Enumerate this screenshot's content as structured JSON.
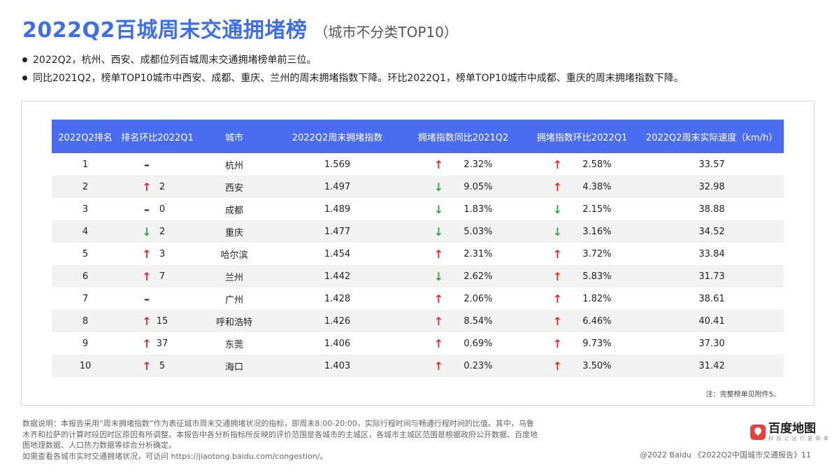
{
  "header": {
    "title": "2022Q2百城周末交通拥堵榜",
    "subtitle": "（城市不分类TOP10）"
  },
  "bullets": [
    "2022Q2，杭州、西安、成都位列百城周末交通拥堵榜单前三位。",
    "同比2021Q2，榜单TOP10城市中西安、成都、重庆、兰州的周末拥堵指数下降。环比2022Q1，榜单TOP10城市中成都、重庆的周末拥堵指数下降。"
  ],
  "table": {
    "columns": [
      "2022Q2排名",
      "排名环比2022Q1",
      "城市",
      "2022Q2周末拥堵指数",
      "拥堵指数同比2021Q2",
      "拥堵指数环比2022Q1",
      "2022Q2周末实际速度（km/h）"
    ],
    "rows": [
      {
        "rank": "1",
        "rank_change": {
          "dir": "flat",
          "value": ""
        },
        "city": "杭州",
        "index": "1.569",
        "yoy": {
          "dir": "up",
          "value": "2.32%"
        },
        "qoq": {
          "dir": "up",
          "value": "2.58%"
        },
        "speed": "33.57"
      },
      {
        "rank": "2",
        "rank_change": {
          "dir": "up",
          "value": "2"
        },
        "city": "西安",
        "index": "1.497",
        "yoy": {
          "dir": "down",
          "value": "9.05%"
        },
        "qoq": {
          "dir": "up",
          "value": "4.38%"
        },
        "speed": "32.98"
      },
      {
        "rank": "3",
        "rank_change": {
          "dir": "flat",
          "value": "0"
        },
        "city": "成都",
        "index": "1.489",
        "yoy": {
          "dir": "down",
          "value": "1.83%"
        },
        "qoq": {
          "dir": "down",
          "value": "2.15%"
        },
        "speed": "38.88"
      },
      {
        "rank": "4",
        "rank_change": {
          "dir": "down",
          "value": "2"
        },
        "city": "重庆",
        "index": "1.477",
        "yoy": {
          "dir": "down",
          "value": "5.03%"
        },
        "qoq": {
          "dir": "down",
          "value": "3.16%"
        },
        "speed": "34.52"
      },
      {
        "rank": "5",
        "rank_change": {
          "dir": "up",
          "value": "3"
        },
        "city": "哈尔滨",
        "index": "1.454",
        "yoy": {
          "dir": "up",
          "value": "2.31%"
        },
        "qoq": {
          "dir": "up",
          "value": "3.72%"
        },
        "speed": "33.84"
      },
      {
        "rank": "6",
        "rank_change": {
          "dir": "up",
          "value": "7"
        },
        "city": "兰州",
        "index": "1.442",
        "yoy": {
          "dir": "down",
          "value": "2.62%"
        },
        "qoq": {
          "dir": "up",
          "value": "5.83%"
        },
        "speed": "31.73"
      },
      {
        "rank": "7",
        "rank_change": {
          "dir": "flat",
          "value": ""
        },
        "city": "广州",
        "index": "1.428",
        "yoy": {
          "dir": "up",
          "value": "2.06%"
        },
        "qoq": {
          "dir": "up",
          "value": "1.82%"
        },
        "speed": "38.61"
      },
      {
        "rank": "8",
        "rank_change": {
          "dir": "up",
          "value": "15"
        },
        "city": "呼和浩特",
        "index": "1.426",
        "yoy": {
          "dir": "up",
          "value": "8.54%"
        },
        "qoq": {
          "dir": "up",
          "value": "6.46%"
        },
        "speed": "40.41"
      },
      {
        "rank": "9",
        "rank_change": {
          "dir": "up",
          "value": "37"
        },
        "city": "东莞",
        "index": "1.406",
        "yoy": {
          "dir": "up",
          "value": "0.69%"
        },
        "qoq": {
          "dir": "up",
          "value": "9.73%"
        },
        "speed": "37.30"
      },
      {
        "rank": "10",
        "rank_change": {
          "dir": "up",
          "value": "5"
        },
        "city": "海口",
        "index": "1.403",
        "yoy": {
          "dir": "up",
          "value": "0.23%"
        },
        "qoq": {
          "dir": "up",
          "value": "3.50%"
        },
        "speed": "31.42"
      }
    ],
    "note": "注：完整榜单见附件5。"
  },
  "arrows": {
    "up": "↑",
    "down": "↓",
    "flat": "–"
  },
  "colors": {
    "title": "#3E6FE6",
    "header_bg": "#4A6CF0",
    "up": "#e52b2b",
    "down": "#2ea84a"
  },
  "footer": {
    "lines": [
      "数据说明：本报告采用“周末拥堵指数”作为表征城市周末交通拥堵状况的指标，即周末8:00-20:00，实际行程时间与畅通行程时间的比值。其中，乌鲁",
      "木齐和拉萨的计算时段因时区原因有所调整。本报告中各分析指标所反映的评价范围是各城市的主城区，各城市主城区范围是根据政府公开数据、百度地",
      "图地理数据、人口热力数据等综合分析确定。",
      "如需查看各城市实时交通拥堵状况，可访问 https://jiaotong.baidu.com/congestion/。"
    ],
    "logo_name": "百度地图",
    "logo_tagline": "科 技 让 出 行 更 简 单",
    "copyright": "@2022 Baidu 《2022Q2中国城市交通报告》11"
  }
}
